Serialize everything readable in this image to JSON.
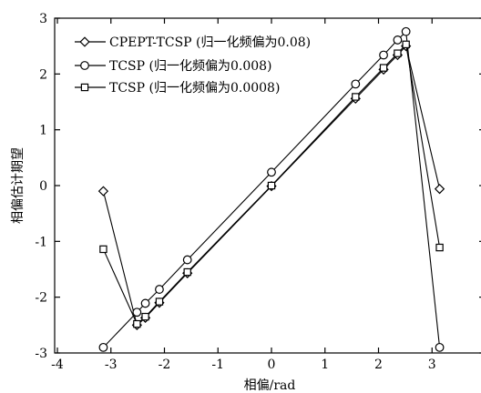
{
  "chart_data": {
    "type": "line",
    "xlabel": "相偏/rad",
    "ylabel": "相偏估计期望",
    "xlim": [
      -4,
      4
    ],
    "ylim": [
      -3,
      3
    ],
    "xticks": [
      -4,
      -3,
      -2,
      -1,
      0,
      1,
      2,
      3,
      4
    ],
    "yticks": [
      -3,
      -2,
      -1,
      0,
      1,
      2,
      3
    ],
    "xtick_labels": [
      "-4",
      "-3",
      "-2",
      "-1",
      "0",
      "1",
      "2",
      "3",
      "4"
    ],
    "ytick_labels": [
      "-3",
      "-2",
      "-1",
      "0",
      "1",
      "2",
      "3"
    ],
    "grid": false,
    "legend_position": "top-left",
    "series": [
      {
        "name": "CPEPT-TCSP (归一化频偏为0.08)",
        "marker": "diamond",
        "x": [
          -3.1416,
          -2.5133,
          -2.3562,
          -2.0944,
          -1.5708,
          0,
          1.5708,
          2.0944,
          2.3562,
          2.5133,
          3.1416
        ],
        "y": [
          -0.1,
          -2.5,
          -2.37,
          -2.1,
          -1.57,
          -0.01,
          1.56,
          2.08,
          2.34,
          2.5,
          -0.06
        ]
      },
      {
        "name": "TCSP (归一化频偏为0.008)",
        "marker": "circle",
        "x": [
          -3.1416,
          -2.5133,
          -2.3562,
          -2.0944,
          -1.5708,
          0,
          1.5708,
          2.0944,
          2.3562,
          2.5133,
          3.1416
        ],
        "y": [
          -2.9,
          -2.27,
          -2.11,
          -1.86,
          -1.33,
          0.24,
          1.82,
          2.34,
          2.61,
          2.76,
          -2.9
        ]
      },
      {
        "name": "TCSP (归一化频偏为0.0008)",
        "marker": "square",
        "x": [
          -3.1416,
          -2.5133,
          -2.3562,
          -2.0944,
          -1.5708,
          0,
          1.5708,
          2.0944,
          2.3562,
          2.5133,
          3.1416
        ],
        "y": [
          -1.14,
          -2.48,
          -2.35,
          -2.08,
          -1.55,
          0.0,
          1.59,
          2.11,
          2.37,
          2.53,
          -1.11
        ]
      }
    ]
  }
}
